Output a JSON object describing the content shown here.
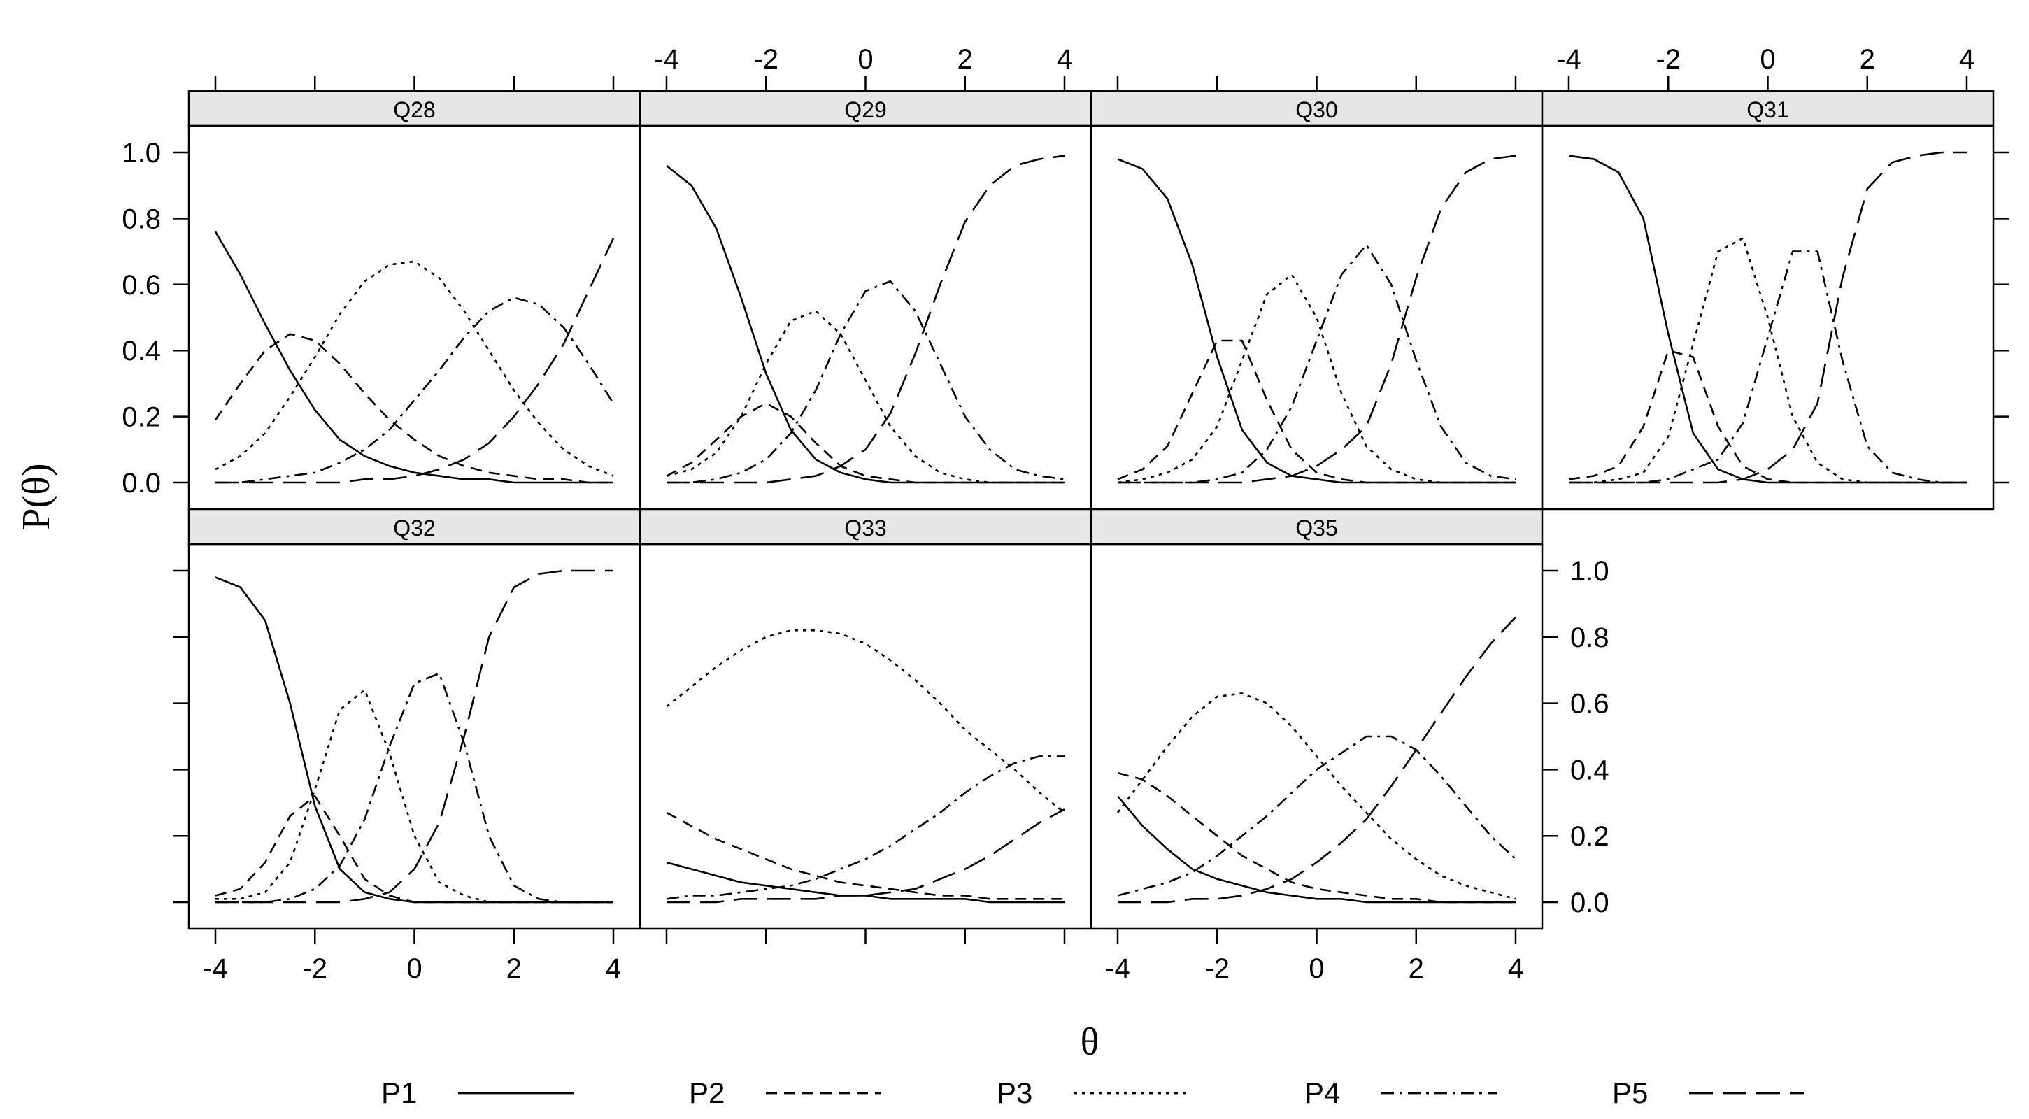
{
  "chart_data": {
    "type": "line",
    "ylabel": "P(θ)",
    "xlabel": "θ",
    "xlim": [
      -4,
      4
    ],
    "ylim": [
      0,
      1
    ],
    "x_ticks": [
      "-4",
      "-2",
      "0",
      "2",
      "4"
    ],
    "y_ticks": [
      "0.0",
      "0.2",
      "0.4",
      "0.6",
      "0.8",
      "1.0"
    ],
    "x_tick_values": [
      -4,
      -2,
      0,
      2,
      4
    ],
    "y_tick_values": [
      0,
      0.2,
      0.4,
      0.6,
      0.8,
      1.0
    ],
    "grid": false,
    "legend_placement": "bottom",
    "legend": [
      {
        "name": "P1",
        "dash": "solid"
      },
      {
        "name": "P2",
        "dash": "short-dash"
      },
      {
        "name": "P3",
        "dash": "dotted"
      },
      {
        "name": "P4",
        "dash": "dash-dot"
      },
      {
        "name": "P5",
        "dash": "long-dash"
      }
    ],
    "x": [
      -4,
      -3.5,
      -3,
      -2.5,
      -2,
      -1.5,
      -1,
      -0.5,
      0,
      0.5,
      1,
      1.5,
      2,
      2.5,
      3,
      3.5,
      4
    ],
    "panels": [
      {
        "title": "Q28",
        "series": [
          {
            "name": "P1",
            "values": [
              0.76,
              0.63,
              0.48,
              0.34,
              0.22,
              0.13,
              0.08,
              0.05,
              0.03,
              0.02,
              0.01,
              0.01,
              0.0,
              0.0,
              0.0,
              0.0,
              0.0
            ]
          },
          {
            "name": "P2",
            "values": [
              0.19,
              0.3,
              0.4,
              0.45,
              0.43,
              0.36,
              0.27,
              0.19,
              0.13,
              0.08,
              0.05,
              0.03,
              0.02,
              0.01,
              0.01,
              0.0,
              0.0
            ]
          },
          {
            "name": "P3",
            "values": [
              0.04,
              0.08,
              0.15,
              0.26,
              0.38,
              0.51,
              0.61,
              0.66,
              0.67,
              0.62,
              0.52,
              0.4,
              0.28,
              0.18,
              0.1,
              0.05,
              0.02
            ]
          },
          {
            "name": "P4",
            "values": [
              0.0,
              0.0,
              0.01,
              0.02,
              0.03,
              0.06,
              0.1,
              0.16,
              0.25,
              0.34,
              0.44,
              0.52,
              0.56,
              0.54,
              0.47,
              0.36,
              0.24
            ]
          },
          {
            "name": "P5",
            "values": [
              0.0,
              0.0,
              0.0,
              0.0,
              0.0,
              0.0,
              0.01,
              0.01,
              0.02,
              0.04,
              0.07,
              0.12,
              0.2,
              0.3,
              0.42,
              0.58,
              0.74
            ]
          }
        ]
      },
      {
        "title": "Q29",
        "series": [
          {
            "name": "P1",
            "values": [
              0.96,
              0.9,
              0.77,
              0.56,
              0.33,
              0.16,
              0.07,
              0.03,
              0.01,
              0.0,
              0.0,
              0.0,
              0.0,
              0.0,
              0.0,
              0.0,
              0.0
            ]
          },
          {
            "name": "P2",
            "values": [
              0.02,
              0.06,
              0.13,
              0.2,
              0.24,
              0.2,
              0.12,
              0.05,
              0.02,
              0.01,
              0.0,
              0.0,
              0.0,
              0.0,
              0.0,
              0.0,
              0.0
            ]
          },
          {
            "name": "P3",
            "values": [
              0.02,
              0.04,
              0.09,
              0.2,
              0.36,
              0.49,
              0.52,
              0.45,
              0.31,
              0.17,
              0.08,
              0.03,
              0.01,
              0.0,
              0.0,
              0.0,
              0.0
            ]
          },
          {
            "name": "P4",
            "values": [
              0.0,
              0.0,
              0.01,
              0.03,
              0.07,
              0.15,
              0.28,
              0.45,
              0.58,
              0.61,
              0.52,
              0.36,
              0.2,
              0.1,
              0.04,
              0.02,
              0.01
            ]
          },
          {
            "name": "P5",
            "values": [
              0.0,
              0.0,
              0.0,
              0.0,
              0.0,
              0.01,
              0.02,
              0.05,
              0.1,
              0.21,
              0.39,
              0.6,
              0.79,
              0.9,
              0.96,
              0.98,
              0.99
            ]
          }
        ]
      },
      {
        "title": "Q30",
        "series": [
          {
            "name": "P1",
            "values": [
              0.98,
              0.95,
              0.86,
              0.66,
              0.38,
              0.16,
              0.06,
              0.02,
              0.01,
              0.0,
              0.0,
              0.0,
              0.0,
              0.0,
              0.0,
              0.0,
              0.0
            ]
          },
          {
            "name": "P2",
            "values": [
              0.01,
              0.04,
              0.11,
              0.27,
              0.43,
              0.43,
              0.25,
              0.1,
              0.03,
              0.01,
              0.0,
              0.0,
              0.0,
              0.0,
              0.0,
              0.0,
              0.0
            ]
          },
          {
            "name": "P3",
            "values": [
              0.0,
              0.01,
              0.03,
              0.07,
              0.17,
              0.37,
              0.57,
              0.63,
              0.5,
              0.27,
              0.11,
              0.04,
              0.01,
              0.0,
              0.0,
              0.0,
              0.0
            ]
          },
          {
            "name": "P4",
            "values": [
              0.0,
              0.0,
              0.0,
              0.0,
              0.01,
              0.03,
              0.1,
              0.23,
              0.43,
              0.63,
              0.72,
              0.6,
              0.37,
              0.17,
              0.06,
              0.02,
              0.01
            ]
          },
          {
            "name": "P5",
            "values": [
              0.0,
              0.0,
              0.0,
              0.0,
              0.0,
              0.0,
              0.01,
              0.02,
              0.05,
              0.1,
              0.17,
              0.36,
              0.62,
              0.83,
              0.94,
              0.98,
              0.99
            ]
          }
        ]
      },
      {
        "title": "Q31",
        "series": [
          {
            "name": "P1",
            "values": [
              0.99,
              0.98,
              0.94,
              0.8,
              0.45,
              0.15,
              0.04,
              0.01,
              0.0,
              0.0,
              0.0,
              0.0,
              0.0,
              0.0,
              0.0,
              0.0,
              0.0
            ]
          },
          {
            "name": "P2",
            "values": [
              0.01,
              0.02,
              0.05,
              0.17,
              0.4,
              0.38,
              0.17,
              0.05,
              0.01,
              0.0,
              0.0,
              0.0,
              0.0,
              0.0,
              0.0,
              0.0,
              0.0
            ]
          },
          {
            "name": "P3",
            "values": [
              0.0,
              0.0,
              0.01,
              0.03,
              0.14,
              0.42,
              0.7,
              0.74,
              0.5,
              0.2,
              0.06,
              0.01,
              0.0,
              0.0,
              0.0,
              0.0,
              0.0
            ]
          },
          {
            "name": "P4",
            "values": [
              0.0,
              0.0,
              0.0,
              0.0,
              0.01,
              0.04,
              0.07,
              0.18,
              0.44,
              0.7,
              0.7,
              0.37,
              0.11,
              0.03,
              0.01,
              0.0,
              0.0
            ]
          },
          {
            "name": "P5",
            "values": [
              0.0,
              0.0,
              0.0,
              0.0,
              0.0,
              0.0,
              0.0,
              0.01,
              0.04,
              0.1,
              0.24,
              0.62,
              0.89,
              0.97,
              0.99,
              1.0,
              1.0
            ]
          }
        ]
      },
      {
        "title": "Q32",
        "series": [
          {
            "name": "P1",
            "values": [
              0.98,
              0.95,
              0.85,
              0.6,
              0.29,
              0.1,
              0.03,
              0.01,
              0.0,
              0.0,
              0.0,
              0.0,
              0.0,
              0.0,
              0.0,
              0.0,
              0.0
            ]
          },
          {
            "name": "P2",
            "values": [
              0.02,
              0.04,
              0.12,
              0.26,
              0.32,
              0.2,
              0.07,
              0.02,
              0.0,
              0.0,
              0.0,
              0.0,
              0.0,
              0.0,
              0.0,
              0.0,
              0.0
            ]
          },
          {
            "name": "P3",
            "values": [
              0.01,
              0.01,
              0.03,
              0.12,
              0.34,
              0.58,
              0.64,
              0.45,
              0.2,
              0.06,
              0.02,
              0.0,
              0.0,
              0.0,
              0.0,
              0.0,
              0.0
            ]
          },
          {
            "name": "P4",
            "values": [
              0.0,
              0.0,
              0.0,
              0.01,
              0.04,
              0.11,
              0.25,
              0.47,
              0.66,
              0.69,
              0.48,
              0.2,
              0.05,
              0.01,
              0.0,
              0.0,
              0.0
            ]
          },
          {
            "name": "P5",
            "values": [
              0.0,
              0.0,
              0.0,
              0.0,
              0.0,
              0.0,
              0.01,
              0.03,
              0.1,
              0.24,
              0.5,
              0.8,
              0.95,
              0.99,
              1.0,
              1.0,
              1.0
            ]
          }
        ]
      },
      {
        "title": "Q33",
        "series": [
          {
            "name": "P1",
            "values": [
              0.12,
              0.1,
              0.08,
              0.06,
              0.05,
              0.04,
              0.03,
              0.02,
              0.02,
              0.01,
              0.01,
              0.01,
              0.01,
              0.0,
              0.0,
              0.0,
              0.0
            ]
          },
          {
            "name": "P2",
            "values": [
              0.27,
              0.23,
              0.19,
              0.16,
              0.13,
              0.1,
              0.08,
              0.06,
              0.05,
              0.04,
              0.03,
              0.02,
              0.02,
              0.01,
              0.01,
              0.01,
              0.01
            ]
          },
          {
            "name": "P3",
            "values": [
              0.59,
              0.65,
              0.71,
              0.76,
              0.8,
              0.82,
              0.82,
              0.81,
              0.78,
              0.73,
              0.67,
              0.6,
              0.52,
              0.46,
              0.4,
              0.33,
              0.27
            ]
          },
          {
            "name": "P4",
            "values": [
              0.01,
              0.02,
              0.02,
              0.03,
              0.04,
              0.05,
              0.07,
              0.1,
              0.13,
              0.17,
              0.22,
              0.27,
              0.33,
              0.38,
              0.42,
              0.44,
              0.44
            ]
          },
          {
            "name": "P5",
            "values": [
              0.0,
              0.0,
              0.0,
              0.01,
              0.01,
              0.01,
              0.01,
              0.02,
              0.02,
              0.03,
              0.04,
              0.07,
              0.1,
              0.14,
              0.19,
              0.24,
              0.28
            ]
          }
        ]
      },
      {
        "title": "Q35",
        "series": [
          {
            "name": "P1",
            "values": [
              0.32,
              0.23,
              0.16,
              0.1,
              0.07,
              0.05,
              0.03,
              0.02,
              0.01,
              0.01,
              0.0,
              0.0,
              0.0,
              0.0,
              0.0,
              0.0,
              0.0
            ]
          },
          {
            "name": "P2",
            "values": [
              0.39,
              0.37,
              0.32,
              0.26,
              0.2,
              0.14,
              0.1,
              0.06,
              0.04,
              0.03,
              0.02,
              0.01,
              0.01,
              0.0,
              0.0,
              0.0,
              0.0
            ]
          },
          {
            "name": "P3",
            "values": [
              0.27,
              0.37,
              0.47,
              0.56,
              0.62,
              0.63,
              0.6,
              0.53,
              0.44,
              0.35,
              0.27,
              0.19,
              0.13,
              0.08,
              0.05,
              0.03,
              0.01
            ]
          },
          {
            "name": "P4",
            "values": [
              0.02,
              0.04,
              0.06,
              0.09,
              0.14,
              0.2,
              0.26,
              0.33,
              0.4,
              0.45,
              0.5,
              0.5,
              0.46,
              0.38,
              0.29,
              0.2,
              0.13
            ]
          },
          {
            "name": "P5",
            "values": [
              0.0,
              0.0,
              0.0,
              0.01,
              0.01,
              0.02,
              0.04,
              0.07,
              0.12,
              0.18,
              0.25,
              0.35,
              0.46,
              0.57,
              0.68,
              0.78,
              0.86
            ]
          }
        ]
      }
    ]
  }
}
